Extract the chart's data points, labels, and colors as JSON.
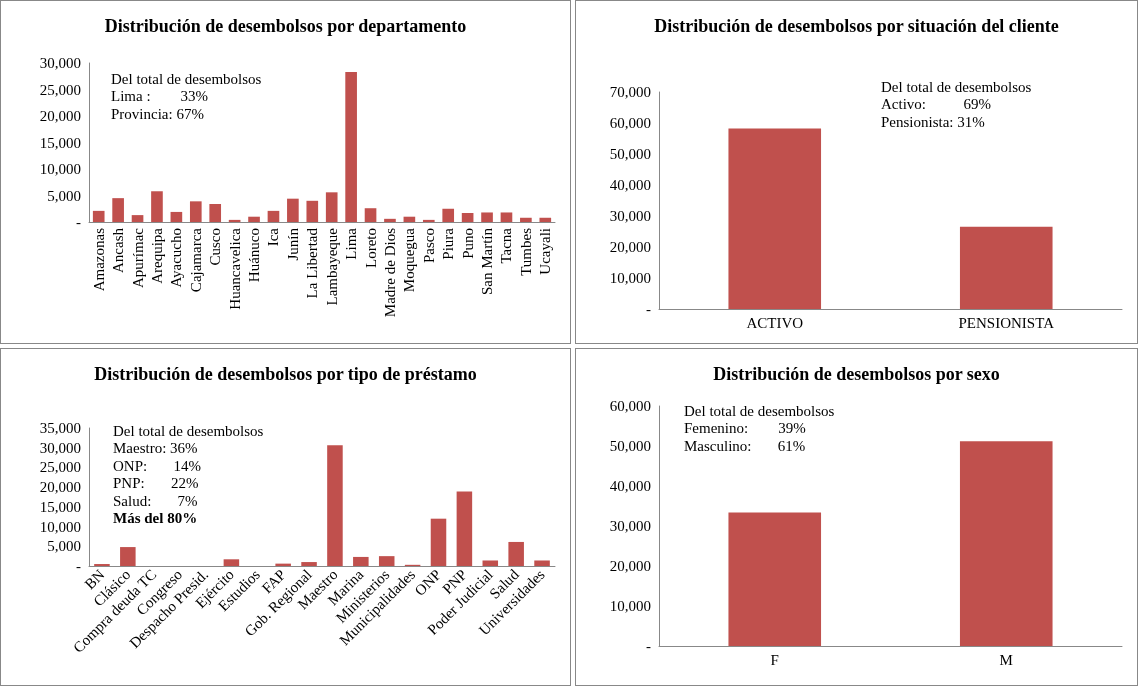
{
  "chart_data": [
    {
      "type": "bar",
      "title": "Distribución de desembolsos por departamento",
      "categories": [
        "Amazonas",
        "Ancash",
        "Apurímac",
        "Arequipa",
        "Ayacucho",
        "Cajamarca",
        "Cusco",
        "Huancavelica",
        "Huánuco",
        "Ica",
        "Junín",
        "La Libertad",
        "Lambayeque",
        "Lima",
        "Loreto",
        "Madre de Dios",
        "Moquegua",
        "Pasco",
        "Piura",
        "Puno",
        "San Martín",
        "Tacna",
        "Tumbes",
        "Ucayali"
      ],
      "values": [
        2100,
        4500,
        1300,
        5800,
        1900,
        3900,
        3400,
        400,
        1000,
        2100,
        4400,
        4000,
        5600,
        28300,
        2600,
        600,
        1000,
        400,
        2500,
        1700,
        1800,
        1800,
        800,
        800
      ],
      "color": "#c0504d",
      "ylim": [
        0,
        30000
      ],
      "yticks": [
        {
          "value": 0,
          "label": "-"
        },
        {
          "value": 5000,
          "label": "5,000"
        },
        {
          "value": 10000,
          "label": "10,000"
        },
        {
          "value": 15000,
          "label": "15,000"
        },
        {
          "value": 20000,
          "label": "20,000"
        },
        {
          "value": 25000,
          "label": "25,000"
        },
        {
          "value": 30000,
          "label": "30,000"
        }
      ],
      "annotations": [
        "Del total de desembolsos",
        "Lima :        33%",
        "Provincia: 67%"
      ]
    },
    {
      "type": "bar",
      "title": "Distribución de desembolsos por situación del cliente",
      "categories": [
        "ACTIVO",
        "PENSIONISTA"
      ],
      "values": [
        58200,
        26500
      ],
      "color": "#c0504d",
      "ylim": [
        0,
        70000
      ],
      "yticks": [
        {
          "value": 0,
          "label": "-"
        },
        {
          "value": 10000,
          "label": "10,000"
        },
        {
          "value": 20000,
          "label": "20,000"
        },
        {
          "value": 30000,
          "label": "30,000"
        },
        {
          "value": 40000,
          "label": "40,000"
        },
        {
          "value": 50000,
          "label": "50,000"
        },
        {
          "value": 60000,
          "label": "60,000"
        },
        {
          "value": 70000,
          "label": "70,000"
        }
      ],
      "annotations": [
        "Del total de desembolsos",
        "Activo:          69%",
        "Pensionista: 31%"
      ]
    },
    {
      "type": "bar",
      "title": "Distribución de desembolsos por tipo de préstamo",
      "categories": [
        "BN",
        "Clásico",
        "Compra deuda TC",
        "Congreso",
        "Despacho Presid.",
        "Ejército",
        "Estudios",
        "FAP",
        "Gob. Regional",
        "Maestro",
        "Marina",
        "Ministerios",
        "Municipalidades",
        "ONP",
        "PNP",
        "Poder Judicial",
        "Salud",
        "Universidades"
      ],
      "values": [
        500,
        4800,
        0,
        0,
        0,
        1700,
        0,
        600,
        1000,
        30600,
        2300,
        2500,
        300,
        12000,
        18900,
        1400,
        6100,
        1400
      ],
      "color": "#c0504d",
      "ylim": [
        0,
        35000
      ],
      "yticks": [
        {
          "value": 0,
          "label": "-"
        },
        {
          "value": 5000,
          "label": "5,000"
        },
        {
          "value": 10000,
          "label": "10,000"
        },
        {
          "value": 15000,
          "label": "15,000"
        },
        {
          "value": 20000,
          "label": "20,000"
        },
        {
          "value": 25000,
          "label": "25,000"
        },
        {
          "value": 30000,
          "label": "30,000"
        },
        {
          "value": 35000,
          "label": "35,000"
        }
      ],
      "annotations": [
        "Del total de desembolsos",
        "Maestro: 36%",
        "ONP:       14%",
        "PNP:       22%",
        "Salud:       7%",
        "Más del 80%"
      ]
    },
    {
      "type": "bar",
      "title": "Distribución de desembolsos por sexo",
      "categories": [
        "F",
        "M"
      ],
      "values": [
        33400,
        51200
      ],
      "color": "#c0504d",
      "ylim": [
        0,
        60000
      ],
      "yticks": [
        {
          "value": 0,
          "label": "-"
        },
        {
          "value": 10000,
          "label": "10,000"
        },
        {
          "value": 20000,
          "label": "20,000"
        },
        {
          "value": 30000,
          "label": "30,000"
        },
        {
          "value": 40000,
          "label": "40,000"
        },
        {
          "value": 50000,
          "label": "50,000"
        },
        {
          "value": 60000,
          "label": "60,000"
        }
      ],
      "annotations": [
        "Del total de desembolsos",
        "Femenino:        39%",
        "Masculino:       61%"
      ]
    }
  ]
}
